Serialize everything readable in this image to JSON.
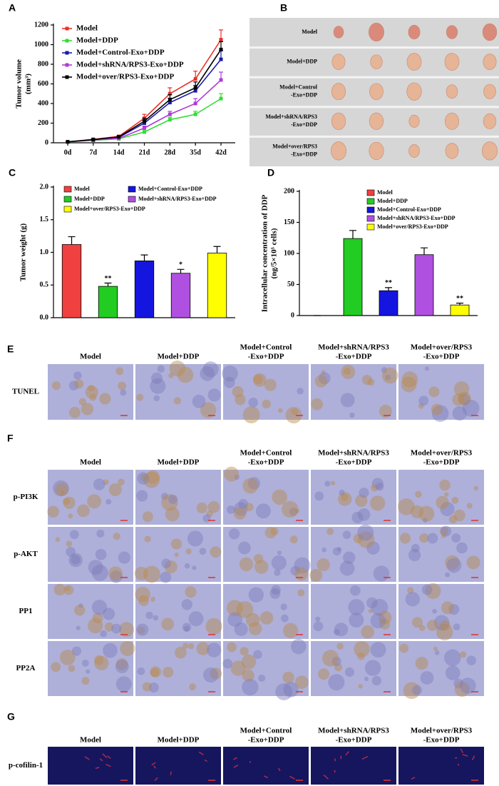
{
  "chart_data": [
    {
      "type": "line",
      "label": "A",
      "y_label": [
        "Tumor volume",
        "(mm³)"
      ],
      "categories": [
        "0d",
        "7d",
        "14d",
        "21d",
        "28d",
        "35d",
        "42d"
      ],
      "ylim": [
        0,
        1200
      ],
      "yticks": [
        0,
        200,
        400,
        600,
        800,
        1000,
        1200
      ],
      "series": [
        {
          "name": "Model",
          "color": "#e8302a",
          "values": [
            10,
            35,
            65,
            250,
            500,
            650,
            1050
          ],
          "errors": [
            5,
            5,
            10,
            40,
            60,
            80,
            100
          ]
        },
        {
          "name": "Model+DDP",
          "color": "#33dd33",
          "values": [
            8,
            25,
            40,
            110,
            235,
            290,
            450
          ],
          "errors": [
            3,
            5,
            5,
            15,
            25,
            30,
            50
          ]
        },
        {
          "name": "Model+Control-Exo+DDP",
          "color": "#1a1aa8",
          "values": [
            10,
            30,
            55,
            200,
            410,
            530,
            850
          ],
          "errors": [
            4,
            5,
            8,
            25,
            45,
            55,
            90
          ]
        },
        {
          "name": "Model+shRNA/RPS3-Exo+DDP",
          "color": "#b03ad8",
          "values": [
            9,
            28,
            45,
            150,
            290,
            400,
            640
          ],
          "errors": [
            3,
            5,
            6,
            20,
            30,
            50,
            80
          ]
        },
        {
          "name": "Model+over/RPS3-Exo+DDP",
          "color": "#000000",
          "values": [
            10,
            32,
            60,
            220,
            440,
            560,
            950
          ],
          "errors": [
            4,
            5,
            8,
            30,
            50,
            60,
            80
          ]
        }
      ]
    },
    {
      "type": "bar",
      "label": "C",
      "y_label": [
        "Tumor weight (g)"
      ],
      "legend": "top",
      "categories": [
        "Model",
        "Model+DDP",
        "Model+Control-Exo+DDP",
        "Model+shRNA/RPS3-Exo+DDP",
        "Model+over/RPS3-Exo+DDP"
      ],
      "colors": [
        "#f04040",
        "#22cc22",
        "#1515e0",
        "#b050e0",
        "#ffff00"
      ],
      "values": [
        1.12,
        0.48,
        0.87,
        0.68,
        0.99
      ],
      "errors": [
        0.12,
        0.05,
        0.09,
        0.06,
        0.1
      ],
      "annotations": [
        null,
        "**",
        null,
        "*",
        null
      ],
      "ylim": [
        0,
        2
      ],
      "yticks": [
        {
          "value": 0,
          "label": "0.0"
        },
        0.5,
        {
          "value": 1,
          "label": "1.0"
        },
        1.5,
        {
          "value": 2,
          "label": "2.0"
        }
      ]
    },
    {
      "type": "bar",
      "label": "D",
      "y_label": [
        "Intracellular concentration of DDP",
        "(ng/5×10⁵ cells)"
      ],
      "legend": "top-right",
      "categories": [
        "Model",
        "Model+DDP",
        "Model+Control-Exo+DDP",
        "Model+shRNA/RPS3-Exo+DDP",
        "Model+over/RPS3-Exo+DDP"
      ],
      "colors": [
        "#f04040",
        "#22cc22",
        "#1515e0",
        "#b050e0",
        "#ffff00"
      ],
      "values": [
        0,
        124,
        40,
        98,
        17
      ],
      "errors": [
        0,
        13,
        5,
        11,
        3
      ],
      "annotations": [
        null,
        null,
        "**",
        null,
        "**"
      ],
      "ylim": [
        0,
        200
      ],
      "yticks": [
        0,
        50,
        100,
        150,
        200
      ]
    }
  ],
  "tumor_panel": {
    "label": "B",
    "rows": [
      [
        "Model"
      ],
      [
        "Model+DDP"
      ],
      [
        "Model+Control",
        "-Exo+DDP"
      ],
      [
        "Model+shRNA/RPS3",
        "-Exo+DDP"
      ],
      [
        "Model+over/RPS3",
        "-Exo+DDP"
      ]
    ]
  },
  "stain_panels": [
    {
      "label": "E",
      "columns": [
        [
          "Model"
        ],
        [
          "Model+DDP"
        ],
        [
          "Model+Control",
          "-Exo+DDP"
        ],
        [
          "Model+shRNA/RPS3",
          "-Exo+DDP"
        ],
        [
          "Model+over/RPS3",
          "-Exo+DDP"
        ]
      ],
      "rows": [
        "TUNEL"
      ]
    },
    {
      "label": "F",
      "columns": [
        [
          "Model"
        ],
        [
          "Model+DDP"
        ],
        [
          "Model+Control",
          "-Exo+DDP"
        ],
        [
          "Model+shRNA/RPS3",
          "-Exo+DDP"
        ],
        [
          "Model+over/RPS3",
          "-Exo+DDP"
        ]
      ],
      "rows": [
        "p-PI3K",
        "p-AKT",
        "PP1",
        "PP2A"
      ]
    },
    {
      "label": "G",
      "columns": [
        [
          "Model"
        ],
        [
          "Model+DDP"
        ],
        [
          "Model+Control",
          "-Exo+DDP"
        ],
        [
          "Model+shRNA/RPS3",
          "-Exo+DDP"
        ],
        [
          "Model+over/RPS3",
          "-Exo+DDP"
        ]
      ],
      "rows": [
        "p-cofilin-1"
      ]
    }
  ]
}
